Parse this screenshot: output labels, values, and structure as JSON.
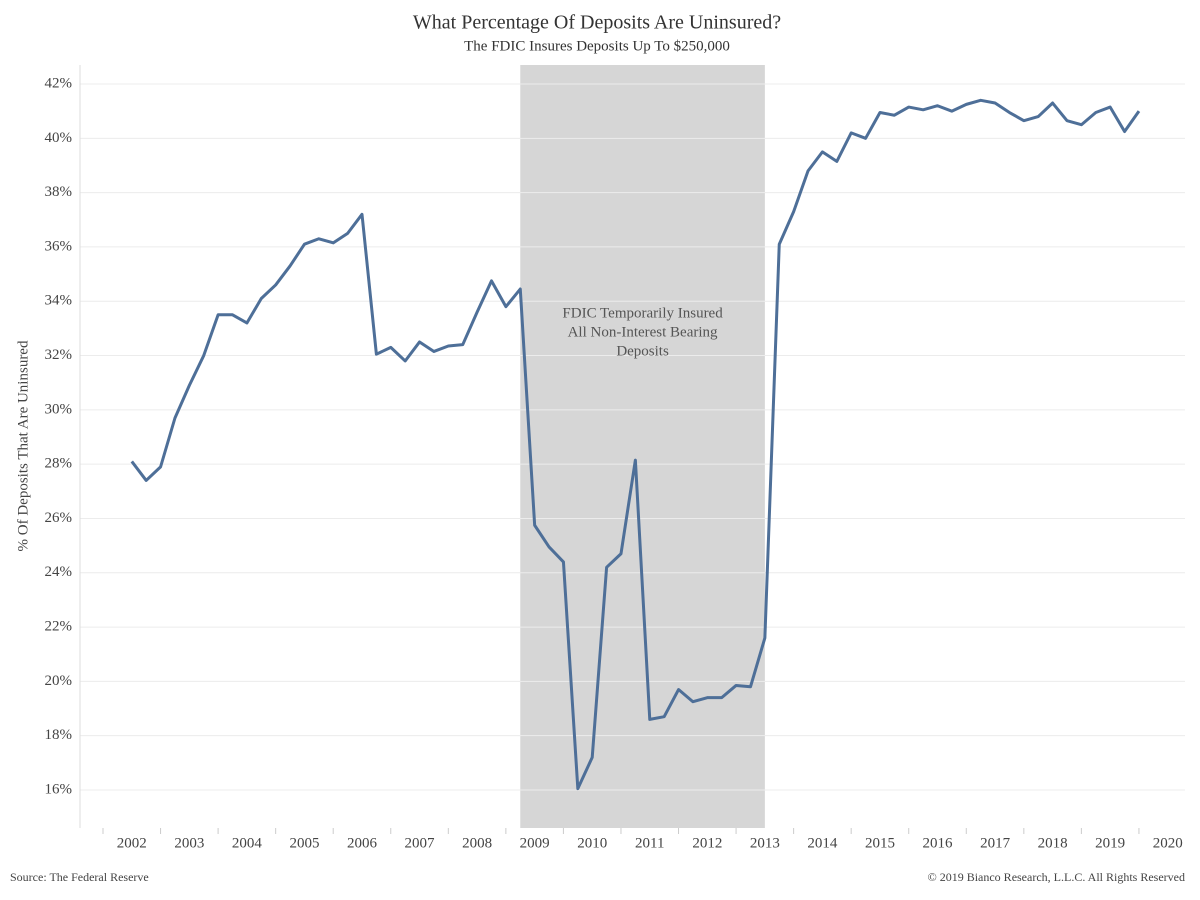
{
  "chart_data": {
    "type": "line",
    "title": "What Percentage Of Deposits Are Uninsured?",
    "subtitle": "The FDIC Insures Deposits Up To $250,000",
    "y_label": "% Of Deposits That Are Uninsured",
    "source": "Source: The Federal Reserve",
    "copyright": "© 2019 Bianco Research, L.L.C. All Rights Reserved",
    "annotation": [
      "FDIC Temporarily Insured",
      "All Non-Interest Bearing",
      "Deposits"
    ],
    "shade": [
      2008.75,
      2013
    ],
    "shade_color": "#d6d6d6",
    "grid": true,
    "x": [
      2002,
      2002.25,
      2002.5,
      2002.75,
      2003,
      2003.25,
      2003.5,
      2003.75,
      2004,
      2004.25,
      2004.5,
      2004.75,
      2005,
      2005.25,
      2005.5,
      2005.75,
      2006,
      2006.25,
      2006.5,
      2006.75,
      2007,
      2007.25,
      2007.5,
      2007.75,
      2008,
      2008.25,
      2008.5,
      2008.75,
      2009,
      2009.25,
      2009.5,
      2009.75,
      2010,
      2010.25,
      2010.5,
      2010.75,
      2011,
      2011.25,
      2011.5,
      2011.75,
      2012,
      2012.25,
      2012.5,
      2012.75,
      2013,
      2013.25,
      2013.5,
      2013.75,
      2014,
      2014.25,
      2014.5,
      2014.75,
      2015,
      2015.25,
      2015.5,
      2015.75,
      2016,
      2016.25,
      2016.5,
      2016.75,
      2017,
      2017.25,
      2017.5,
      2017.75,
      2018,
      2018.25,
      2018.5,
      2018.75,
      2019,
      2019.25,
      2019.5
    ],
    "series": [
      {
        "name": "Uninsured",
        "color": "#4e6f98",
        "values": [
          28.1,
          27.4,
          27.9,
          29.7,
          30.9,
          32.0,
          33.5,
          33.5,
          33.2,
          34.1,
          34.6,
          35.3,
          36.1,
          36.3,
          36.15,
          36.5,
          37.2,
          32.05,
          32.3,
          31.8,
          32.5,
          32.15,
          32.35,
          32.4,
          33.6,
          34.75,
          33.8,
          34.45,
          25.75,
          24.95,
          24.4,
          16.05,
          17.2,
          24.2,
          24.7,
          28.15,
          18.6,
          18.7,
          19.7,
          19.25,
          19.4,
          19.4,
          19.85,
          19.8,
          21.6,
          36.1,
          37.3,
          38.8,
          39.5,
          39.15,
          40.2,
          40.0,
          40.95,
          40.85,
          41.15,
          41.05,
          41.2,
          41.0,
          41.25,
          41.4,
          41.3,
          40.95,
          40.65,
          40.8,
          41.3,
          40.65,
          40.5,
          40.95,
          41.15,
          40.25,
          41.0
        ]
      }
    ],
    "xlim": [
      2001.1,
      2020.3
    ],
    "xticks": [
      2002,
      2003,
      2004,
      2005,
      2006,
      2007,
      2008,
      2009,
      2010,
      2011,
      2012,
      2013,
      2014,
      2015,
      2016,
      2017,
      2018,
      2019,
      2020
    ],
    "ylim": [
      14.6,
      42.7
    ],
    "yticks": [
      {
        "value": 16,
        "label": "16%"
      },
      {
        "value": 18,
        "label": "18%"
      },
      {
        "value": 20,
        "label": "20%"
      },
      {
        "value": 22,
        "label": "22%"
      },
      {
        "value": 24,
        "label": "24%"
      },
      {
        "value": 26,
        "label": "26%"
      },
      {
        "value": 28,
        "label": "28%"
      },
      {
        "value": 30,
        "label": "30%"
      },
      {
        "value": 32,
        "label": "32%"
      },
      {
        "value": 34,
        "label": "34%"
      },
      {
        "value": 36,
        "label": "36%"
      },
      {
        "value": 38,
        "label": "38%"
      },
      {
        "value": 40,
        "label": "40%"
      },
      {
        "value": 42,
        "label": "42%"
      }
    ]
  }
}
